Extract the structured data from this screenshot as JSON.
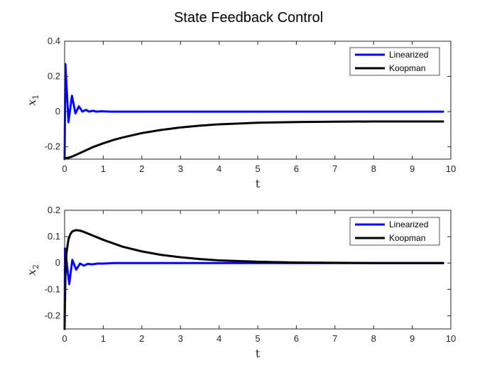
{
  "figure": {
    "title": "State Feedback Control"
  },
  "chart_data": [
    {
      "type": "line",
      "xlabel": "t",
      "ylabel_main": "x",
      "ylabel_sub": "1",
      "xlim": [
        0,
        10
      ],
      "ylim": [
        -0.27,
        0.4
      ],
      "xticks": [
        0,
        1,
        2,
        3,
        4,
        5,
        6,
        7,
        8,
        9,
        10
      ],
      "yticks": [
        -0.2,
        0,
        0.2,
        0.4
      ],
      "ytick_labels": [
        "-0.2",
        "0",
        "0.2",
        "0.4"
      ],
      "legend": "top-right",
      "series": [
        {
          "name": "Linearized",
          "color": "#0000ff",
          "x": [
            0,
            0.02,
            0.1,
            0.19,
            0.28,
            0.37,
            0.46,
            0.55,
            0.64,
            0.73,
            0.82,
            0.95,
            1.2,
            1.6,
            2,
            3,
            4,
            5,
            6,
            7,
            8,
            9,
            9.8
          ],
          "y": [
            -0.27,
            0.27,
            -0.06,
            0.09,
            -0.01,
            0.03,
            0.0,
            0.01,
            0.0,
            0.005,
            0.0,
            0.002,
            0.0,
            0.0,
            0.0,
            0.0,
            0.0,
            0.0,
            0.0,
            0.0,
            0.0,
            0.0,
            0.0
          ]
        },
        {
          "name": "Koopman",
          "color": "#000000",
          "x": [
            0,
            0.1,
            0.2,
            0.3,
            0.5,
            0.75,
            1,
            1.25,
            1.5,
            2,
            2.5,
            3,
            3.5,
            4,
            5,
            6,
            7,
            8,
            9,
            9.8
          ],
          "y": [
            -0.265,
            -0.262,
            -0.255,
            -0.245,
            -0.225,
            -0.2,
            -0.18,
            -0.162,
            -0.147,
            -0.122,
            -0.104,
            -0.09,
            -0.08,
            -0.072,
            -0.063,
            -0.059,
            -0.057,
            -0.056,
            -0.056,
            -0.056
          ]
        }
      ]
    },
    {
      "type": "line",
      "xlabel": "t",
      "ylabel_main": "x",
      "ylabel_sub": "2",
      "xlim": [
        0,
        10
      ],
      "ylim": [
        -0.25,
        0.2
      ],
      "xticks": [
        0,
        1,
        2,
        3,
        4,
        5,
        6,
        7,
        8,
        9,
        10
      ],
      "yticks": [
        -0.2,
        -0.1,
        0,
        0.1,
        0.2
      ],
      "ytick_labels": [
        "-0.2",
        "-0.1",
        "0",
        "0.1",
        "0.2"
      ],
      "legend": "top-right",
      "series": [
        {
          "name": "Linearized",
          "color": "#0000ff",
          "x": [
            0,
            0.01,
            0.12,
            0.2,
            0.3,
            0.4,
            0.5,
            0.6,
            0.7,
            0.85,
            1.0,
            1.3,
            2,
            3,
            4,
            5,
            6,
            7,
            8,
            9,
            9.8
          ],
          "y": [
            -0.25,
            0.055,
            -0.08,
            0.012,
            -0.025,
            -0.002,
            -0.01,
            -0.003,
            -0.005,
            -0.002,
            -0.002,
            0.0,
            0.0,
            0.0,
            0.0,
            0.0,
            0.0,
            0.0,
            0.0,
            0.0,
            0.0
          ]
        },
        {
          "name": "Koopman",
          "color": "#000000",
          "x": [
            0,
            0.02,
            0.05,
            0.1,
            0.15,
            0.2,
            0.3,
            0.4,
            0.5,
            0.7,
            1,
            1.5,
            2,
            2.5,
            3,
            3.5,
            4,
            5,
            6,
            7,
            8,
            9,
            9.8
          ],
          "y": [
            -0.25,
            -0.05,
            0.04,
            0.09,
            0.11,
            0.12,
            0.125,
            0.123,
            0.118,
            0.106,
            0.088,
            0.062,
            0.044,
            0.031,
            0.022,
            0.015,
            0.01,
            0.005,
            0.002,
            0.001,
            0.0,
            0.0,
            0.0
          ]
        }
      ]
    }
  ]
}
